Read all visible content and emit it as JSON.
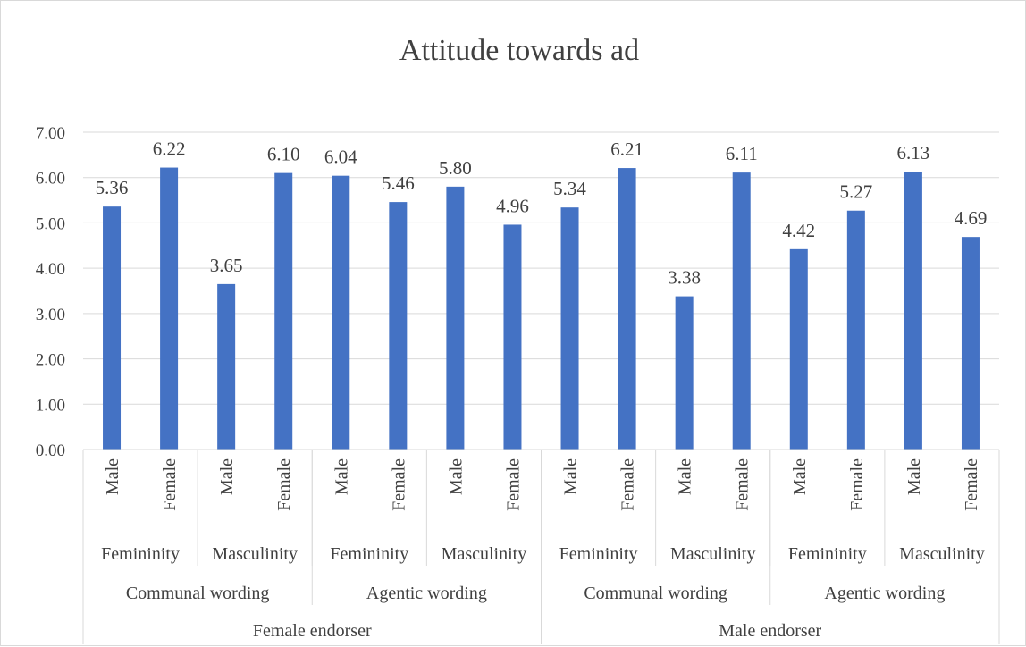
{
  "chart_data": {
    "type": "bar",
    "title": "Attitude towards ad",
    "xlabel": "",
    "ylabel": "",
    "ylim": [
      0,
      7
    ],
    "yticks": [
      "0.00",
      "1.00",
      "2.00",
      "3.00",
      "4.00",
      "5.00",
      "6.00",
      "7.00"
    ],
    "grid": true,
    "legend": "none",
    "bar_color": "#4472C4",
    "categories": [
      {
        "endorser": "Female endorser",
        "wording": "Communal wording",
        "trait": "Femininity",
        "gender": "Male"
      },
      {
        "endorser": "Female endorser",
        "wording": "Communal wording",
        "trait": "Femininity",
        "gender": "Female"
      },
      {
        "endorser": "Female endorser",
        "wording": "Communal wording",
        "trait": "Masculinity",
        "gender": "Male"
      },
      {
        "endorser": "Female endorser",
        "wording": "Communal wording",
        "trait": "Masculinity",
        "gender": "Female"
      },
      {
        "endorser": "Female endorser",
        "wording": "Agentic wording",
        "trait": "Femininity",
        "gender": "Male"
      },
      {
        "endorser": "Female endorser",
        "wording": "Agentic wording",
        "trait": "Femininity",
        "gender": "Female"
      },
      {
        "endorser": "Female endorser",
        "wording": "Agentic wording",
        "trait": "Masculinity",
        "gender": "Male"
      },
      {
        "endorser": "Female endorser",
        "wording": "Agentic wording",
        "trait": "Masculinity",
        "gender": "Female"
      },
      {
        "endorser": "Male endorser",
        "wording": "Communal wording",
        "trait": "Femininity",
        "gender": "Male"
      },
      {
        "endorser": "Male endorser",
        "wording": "Communal wording",
        "trait": "Femininity",
        "gender": "Female"
      },
      {
        "endorser": "Male endorser",
        "wording": "Communal wording",
        "trait": "Masculinity",
        "gender": "Male"
      },
      {
        "endorser": "Male endorser",
        "wording": "Communal wording",
        "trait": "Masculinity",
        "gender": "Female"
      },
      {
        "endorser": "Male endorser",
        "wording": "Agentic wording",
        "trait": "Femininity",
        "gender": "Male"
      },
      {
        "endorser": "Male endorser",
        "wording": "Agentic wording",
        "trait": "Femininity",
        "gender": "Female"
      },
      {
        "endorser": "Male endorser",
        "wording": "Agentic wording",
        "trait": "Masculinity",
        "gender": "Male"
      },
      {
        "endorser": "Male endorser",
        "wording": "Agentic wording",
        "trait": "Masculinity",
        "gender": "Female"
      }
    ],
    "values": [
      5.36,
      6.22,
      3.65,
      6.1,
      6.04,
      5.46,
      5.8,
      4.96,
      5.34,
      6.21,
      3.38,
      6.11,
      4.42,
      5.27,
      6.13,
      4.69
    ],
    "data_labels": [
      "5.36",
      "6.22",
      "3.65",
      "6.10",
      "6.04",
      "5.46",
      "5.80",
      "4.96",
      "5.34",
      "6.21",
      "3.38",
      "6.11",
      "4.42",
      "5.27",
      "6.13",
      "4.69"
    ]
  }
}
